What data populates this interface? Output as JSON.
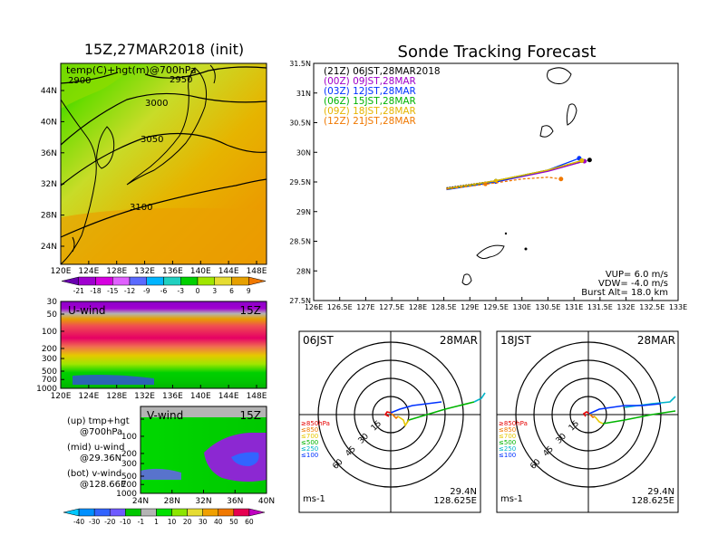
{
  "left_title": "15Z,27MAR2018 (init)",
  "right_title": "Sonde Tracking Forecast",
  "map_label": "temp(C)+hgt(m)@700hPa",
  "contours": [
    {
      "label": "2900"
    },
    {
      "label": "2950"
    },
    {
      "label": "3000"
    },
    {
      "label": "3050"
    },
    {
      "label": "3100"
    }
  ],
  "map_lat_ticks": [
    "44N",
    "40N",
    "36N",
    "32N",
    "28N",
    "24N"
  ],
  "map_lon_ticks": [
    "120E",
    "124E",
    "128E",
    "132E",
    "136E",
    "140E",
    "144E",
    "148E"
  ],
  "temp_colorbar": {
    "labels": [
      "-21",
      "-18",
      "-15",
      "-12",
      "-9",
      "-6",
      "-3",
      "0",
      "3",
      "6",
      "9"
    ],
    "colors": [
      "#6a00b0",
      "#a000d0",
      "#d600e0",
      "#e060ff",
      "#5a6aff",
      "#00b4ff",
      "#20d0c0",
      "#00d000",
      "#a0e600",
      "#e6dc32",
      "#e6a000",
      "#f07800"
    ]
  },
  "u_panel": {
    "label": "U-wind",
    "time": "15Z",
    "p_ticks": [
      "30",
      "50",
      "100",
      "200",
      "300",
      "500",
      "700",
      "1000"
    ],
    "lon_ticks": [
      "120E",
      "124E",
      "128E",
      "132E",
      "136E",
      "140E",
      "144E",
      "148E"
    ]
  },
  "v_panel": {
    "label": "V-wind",
    "time": "15Z",
    "p_ticks": [
      "30",
      "50",
      "100",
      "200",
      "300",
      "500",
      "700",
      "1000"
    ],
    "lat_ticks": [
      "24N",
      "28N",
      "32N",
      "36N",
      "40N"
    ]
  },
  "notes": [
    {
      "a": "(up) tmp+hgt",
      "b": "@700hPa"
    },
    {
      "a": "(mid) u-wind",
      "b": "@29.36N"
    },
    {
      "a": "(bot) v-wind",
      "b": "@128.66E"
    }
  ],
  "wind_colorbar": {
    "labels": [
      "-40",
      "-30",
      "-20",
      "-10",
      "-1",
      "1",
      "10",
      "20",
      "30",
      "40",
      "50",
      "60"
    ],
    "colors": [
      "#00c8ff",
      "#0090ff",
      "#3264ff",
      "#6e5aff",
      "#00c800",
      "#b4b4b4",
      "#00e000",
      "#8ce600",
      "#e6dc32",
      "#f0a000",
      "#f07800",
      "#e60050",
      "#c000c0"
    ]
  },
  "track": {
    "legend": [
      {
        "label": "(21Z)  06JST,28MAR2018",
        "color": "#000000"
      },
      {
        "label": "(00Z)  09JST,28MAR",
        "color": "#a000c8"
      },
      {
        "label": "(03Z)  12JST,28MAR",
        "color": "#0032ff"
      },
      {
        "label": "(06Z)  15JST,28MAR",
        "color": "#00b400"
      },
      {
        "label": "(09Z)  18JST,28MAR",
        "color": "#e6b400"
      },
      {
        "label": "(12Z)  21JST,28MAR",
        "color": "#f07800"
      }
    ],
    "lon_ticks": [
      "126E",
      "126.5E",
      "127E",
      "127.5E",
      "128E",
      "128.5E",
      "129E",
      "129.5E",
      "130E",
      "130.5E",
      "131E",
      "131.5E",
      "132E",
      "132.5E",
      "133E"
    ],
    "lat_ticks": [
      "31.5N",
      "31N",
      "30.5N",
      "30N",
      "29.5N",
      "29N",
      "28.5N",
      "28N",
      "27.5N"
    ],
    "params": [
      "VUP=  6.0  m/s",
      "VDW=  -4.0  m/s",
      "Burst Alt=  18.0  km"
    ]
  },
  "polar_left": {
    "time": "06JST",
    "date": "28MAR",
    "ring_labels": [
      "15",
      "30",
      "45",
      "60"
    ],
    "loc_lat": "29.4N",
    "loc_lon": "128.625E",
    "unit": "ms-1"
  },
  "polar_right": {
    "time": "18JST",
    "date": "28MAR",
    "ring_labels": [
      "15",
      "30",
      "45",
      "60"
    ],
    "loc_lat": "29.4N",
    "loc_lon": "128.625E",
    "unit": "ms-1"
  },
  "pressure_legend": [
    {
      "label": "≥850hPa",
      "color": "#e60000"
    },
    {
      "label": "≤850",
      "color": "#f07800"
    },
    {
      "label": "≤700",
      "color": "#e6c800"
    },
    {
      "label": "≤500",
      "color": "#00b400"
    },
    {
      "label": "≤250",
      "color": "#00b4c8"
    },
    {
      "label": "≤100",
      "color": "#0032ff"
    }
  ],
  "chart_data": {
    "type": "line",
    "title": "Sonde Tracking Forecast",
    "xlim": [
      126,
      133
    ],
    "ylim": [
      27.5,
      31.5
    ],
    "series": [
      {
        "name": "(21Z)  06JST,28MAR2018",
        "x": [
          128.55,
          129.5,
          130.5,
          131.3
        ],
        "y": [
          29.4,
          29.52,
          29.7,
          29.87
        ]
      },
      {
        "name": "(00Z)  09JST,28MAR",
        "x": [
          128.55,
          129.5,
          130.5,
          131.2
        ],
        "y": [
          29.38,
          29.5,
          29.68,
          29.85
        ]
      },
      {
        "name": "(03Z)  12JST,28MAR",
        "x": [
          128.55,
          129.5,
          130.5,
          131.1
        ],
        "y": [
          29.37,
          29.5,
          29.7,
          29.9
        ]
      },
      {
        "name": "(06Z)  15JST,28MAR",
        "x": [
          128.55,
          129.5,
          130.5,
          131.15
        ],
        "y": [
          29.38,
          29.52,
          29.7,
          29.86
        ]
      },
      {
        "name": "(09Z)  18JST,28MAR",
        "x": [
          128.55,
          129.5,
          130.5,
          131.15
        ],
        "y": [
          29.39,
          29.52,
          29.7,
          29.86
        ]
      },
      {
        "name": "(12Z)  21JST,28MAR",
        "x": [
          128.55,
          129.3,
          130.0,
          130.5,
          130.75
        ],
        "y": [
          29.38,
          29.46,
          29.55,
          29.58,
          29.55
        ]
      }
    ]
  }
}
